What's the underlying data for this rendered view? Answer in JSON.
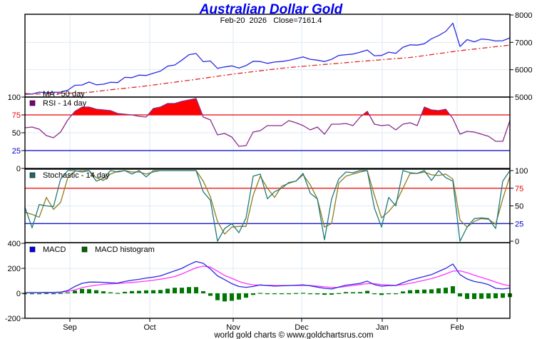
{
  "header": {
    "title": "Australian Dollar Gold",
    "subtitle": "Feb-20  2026   Close=7161.4"
  },
  "footer": {
    "credit": "world gold charts © www.goldchartsrus.com"
  },
  "chart_data": {
    "type": "line",
    "title": "Australian Dollar Gold",
    "subtitle": "Feb-20  2026   Close=7161.4",
    "grid": true,
    "x_axis": {
      "unit": "trading-day index",
      "count": 69,
      "month_ticks": [
        {
          "label": "Sep",
          "at": 6.3
        },
        {
          "label": "Oct",
          "at": 17.5
        },
        {
          "label": "Nov",
          "at": 29.2
        },
        {
          "label": "Dec",
          "at": 38.8
        },
        {
          "label": "Jan",
          "at": 50.1
        },
        {
          "label": "Feb",
          "at": 60.6
        }
      ]
    },
    "panels": [
      {
        "id": "price",
        "type": "line",
        "ylim": [
          5000,
          8000
        ],
        "y_ticks": [
          8000,
          7000,
          6000,
          5000
        ],
        "axis_side": "right",
        "reference_lines": [],
        "legend": [
          {
            "label": "MA - 50 day"
          }
        ],
        "series": [
          {
            "key": "close",
            "color": "#2a2ae0",
            "style": "solid",
            "values": [
              5130,
              5110,
              5180,
              5160,
              5175,
              5180,
              5250,
              5430,
              5440,
              5550,
              5450,
              5470,
              5540,
              5530,
              5720,
              5710,
              5800,
              5790,
              5870,
              5950,
              6130,
              6170,
              6350,
              6550,
              6590,
              6290,
              6320,
              6050,
              6100,
              6140,
              6060,
              6150,
              6310,
              6300,
              6230,
              6280,
              6300,
              6340,
              6400,
              6470,
              6380,
              6350,
              6300,
              6380,
              6520,
              6550,
              6570,
              6640,
              6720,
              6510,
              6520,
              6640,
              6600,
              6820,
              6910,
              6900,
              6950,
              7130,
              7250,
              7400,
              7700,
              6850,
              7100,
              7020,
              7120,
              7100,
              7050,
              7060,
              7161.4
            ]
          },
          {
            "key": "ma50",
            "color": "#e02828",
            "style": "dash-dot",
            "values": [
              5100,
              5107,
              5114,
              5121,
              5128,
              5135,
              5142,
              5149,
              5156,
              5175,
              5205,
              5236,
              5266,
              5295,
              5322,
              5349,
              5376,
              5407,
              5441,
              5475,
              5510,
              5544,
              5579,
              5613,
              5648,
              5685,
              5722,
              5758,
              5795,
              5832,
              5866,
              5897,
              5929,
              5960,
              5991,
              6023,
              6054,
              6081,
              6103,
              6125,
              6147,
              6169,
              6191,
              6213,
              6235,
              6257,
              6279,
              6301,
              6322,
              6343,
              6364,
              6386,
              6407,
              6428,
              6449,
              6478,
              6515,
              6552,
              6588,
              6625,
              6662,
              6695,
              6724,
              6753,
              6783,
              6812,
              6841,
              6871,
              6900
            ]
          }
        ]
      },
      {
        "id": "rsi",
        "type": "line",
        "ylim": [
          0,
          100
        ],
        "y_ticks": [
          100,
          75,
          50,
          25,
          0
        ],
        "axis_side": "left",
        "reference_lines": [
          {
            "value": 75,
            "color": "#ee0000"
          },
          {
            "value": 25,
            "color": "#0000cc"
          }
        ],
        "legend": [
          {
            "label": "RSI - 14 day",
            "color": "#800080"
          }
        ],
        "series": [
          {
            "key": "rsi14",
            "color": "#8a2a8a",
            "style": "solid",
            "fill_above": 75,
            "fill_color": "#ff0000",
            "values": [
              57,
              58,
              55,
              46,
              43,
              51,
              68,
              80,
              86,
              86,
              83,
              82,
              81,
              77,
              76,
              75,
              73,
              72,
              84,
              86,
              91,
              91,
              94,
              96,
              98,
              72,
              68,
              47,
              49,
              44,
              31,
              32,
              51,
              53,
              60,
              60,
              60,
              67,
              64,
              60,
              54,
              58,
              48,
              62,
              62,
              63,
              60,
              72,
              80,
              62,
              60,
              61,
              54,
              62,
              64,
              60,
              86,
              82,
              81,
              83,
              70,
              48,
              52,
              51,
              48,
              45,
              38,
              38,
              67
            ]
          }
        ]
      },
      {
        "id": "stochastic",
        "type": "line",
        "ylim": [
          0,
          100
        ],
        "y_ticks": [
          100,
          75,
          50,
          25,
          0
        ],
        "axis_side": "right",
        "reference_lines": [
          {
            "value": 75,
            "color": "#ee0000"
          },
          {
            "value": 25,
            "color": "#0000cc"
          }
        ],
        "legend": [
          {
            "label": "Stochastic - 14 day",
            "color": "#1b6b6b"
          }
        ],
        "series": [
          {
            "key": "percent_d",
            "color": "#8b7d1f",
            "style": "solid",
            "values": [
              41,
              38,
              34,
              62,
              45,
              55,
              90,
              99,
              100,
              100,
              90,
              86,
              95,
              99,
              100,
              98,
              98,
              95,
              98,
              100,
              100,
              100,
              100,
              100,
              100,
              85,
              63,
              28,
              10,
              20,
              21,
              21,
              65,
              92,
              75,
              62,
              78,
              82,
              85,
              94,
              80,
              60,
              20,
              25,
              82,
              92,
              95,
              98,
              100,
              65,
              33,
              42,
              54,
              75,
              96,
              96,
              98,
              94,
              93,
              95,
              88,
              30,
              20,
              28,
              32,
              31,
              24,
              60,
              92
            ]
          },
          {
            "key": "percent_k",
            "color": "#1f7a7a",
            "style": "solid",
            "values": [
              48,
              19,
              52,
              50,
              49,
              88,
              100,
              100,
              98,
              100,
              85,
              89,
              100,
              98,
              100,
              95,
              100,
              91,
              100,
              100,
              100,
              100,
              100,
              100,
              100,
              70,
              58,
              0,
              18,
              25,
              12,
              33,
              92,
              95,
              60,
              70,
              75,
              83,
              85,
              96,
              68,
              60,
              2,
              60,
              88,
              98,
              97,
              100,
              100,
              47,
              20,
              62,
              50,
              100,
              97,
              96,
              100,
              86,
              100,
              90,
              85,
              0,
              20,
              32,
              33,
              32,
              18,
              85,
              100
            ]
          }
        ]
      },
      {
        "id": "macd",
        "type": "line+bar",
        "ylim": [
          -200,
          400
        ],
        "y_ticks": [
          400,
          200,
          0,
          -200
        ],
        "axis_side": "left",
        "reference_lines": [],
        "legend": [
          {
            "label": "MACD",
            "color": "#0000ee"
          },
          {
            "label": "MACD histogram",
            "color": "#006600"
          }
        ],
        "series": [
          {
            "key": "histogram",
            "type": "bar",
            "color": "#007700",
            "values": [
              -3,
              -2,
              0,
              1,
              0,
              2,
              7,
              22,
              35,
              33,
              25,
              16,
              8,
              3,
              12,
              18,
              20,
              24,
              25,
              27,
              37,
              45,
              45,
              50,
              50,
              17,
              -20,
              -55,
              -65,
              -60,
              -50,
              -35,
              -13,
              3,
              -2,
              -5,
              -3,
              -1,
              2,
              4,
              -3,
              -8,
              -12,
              -11,
              2,
              10,
              9,
              10,
              20,
              -7,
              -13,
              -4,
              -1,
              15,
              25,
              28,
              30,
              32,
              40,
              45,
              57,
              -25,
              -45,
              -46,
              -44,
              -42,
              -40,
              -36,
              -30
            ]
          },
          {
            "key": "signal",
            "type": "line",
            "color": "#ff33ff",
            "style": "solid",
            "values": [
              5,
              6,
              6,
              7,
              7,
              8,
              15,
              28,
              45,
              57,
              65,
              72,
              76,
              79,
              83,
              87,
              92,
              98,
              105,
              113,
              123,
              135,
              155,
              180,
              205,
              218,
              210,
              178,
              142,
              120,
              95,
              78,
              68,
              65,
              64,
              63,
              63,
              63,
              63,
              64,
              63,
              58,
              52,
              46,
              48,
              55,
              63,
              70,
              78,
              77,
              70,
              66,
              64,
              70,
              80,
              92,
              105,
              118,
              135,
              155,
              178,
              180,
              165,
              145,
              128,
              110,
              90,
              72,
              60
            ]
          },
          {
            "key": "macd",
            "type": "line",
            "color": "#2a2ae0",
            "style": "solid",
            "values": [
              5,
              6,
              6,
              8,
              7,
              10,
              22,
              55,
              80,
              90,
              90,
              88,
              84,
              82,
              95,
              105,
              112,
              122,
              130,
              140,
              160,
              180,
              200,
              230,
              255,
              240,
              195,
              140,
              110,
              78,
              55,
              48,
              55,
              68,
              62,
              58,
              60,
              62,
              65,
              68,
              60,
              50,
              40,
              35,
              50,
              65,
              72,
              80,
              98,
              70,
              57,
              62,
              63,
              85,
              105,
              120,
              135,
              150,
              175,
              200,
              235,
              150,
              115,
              95,
              85,
              70,
              40,
              35,
              42
            ]
          }
        ]
      }
    ]
  }
}
